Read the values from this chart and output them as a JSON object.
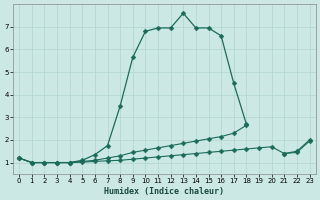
{
  "xlabel": "Humidex (Indice chaleur)",
  "background_color": "#cce8e4",
  "grid_color": "#b0d4cf",
  "line_color": "#1a6b5a",
  "xlim": [
    -0.5,
    23.5
  ],
  "ylim": [
    0.5,
    8.0
  ],
  "xticks": [
    0,
    1,
    2,
    3,
    4,
    5,
    6,
    7,
    8,
    9,
    10,
    11,
    12,
    13,
    14,
    15,
    16,
    17,
    18,
    19,
    20,
    21,
    22,
    23
  ],
  "yticks": [
    1,
    2,
    3,
    4,
    5,
    6,
    7
  ],
  "series": [
    {
      "x": [
        0,
        1,
        2,
        3,
        4,
        5,
        6,
        7,
        8,
        9,
        10,
        11,
        12,
        13,
        14,
        15,
        16,
        17,
        18,
        19,
        20,
        21,
        22,
        23
      ],
      "y": [
        1.2,
        1.0,
        1.0,
        1.0,
        1.0,
        1.1,
        1.35,
        1.75,
        3.5,
        5.65,
        6.8,
        6.95,
        6.95,
        7.6,
        6.95,
        6.95,
        6.6,
        4.5,
        2.7,
        null,
        null,
        null,
        null,
        null
      ]
    },
    {
      "x": [
        0,
        1,
        2,
        3,
        4,
        5,
        6,
        7,
        8,
        9,
        10,
        11,
        12,
        13,
        14,
        15,
        16,
        17,
        18,
        19,
        20,
        21,
        22,
        23
      ],
      "y": [
        1.2,
        1.0,
        1.0,
        1.0,
        1.0,
        1.05,
        1.1,
        1.2,
        1.3,
        1.45,
        1.55,
        1.65,
        1.75,
        1.85,
        1.95,
        2.05,
        2.15,
        2.3,
        2.65,
        null,
        null,
        1.4,
        1.5,
        2.0
      ]
    },
    {
      "x": [
        0,
        1,
        2,
        3,
        4,
        5,
        6,
        7,
        8,
        9,
        10,
        11,
        12,
        13,
        14,
        15,
        16,
        17,
        18,
        19,
        20,
        21,
        22,
        23
      ],
      "y": [
        1.2,
        1.0,
        1.0,
        1.0,
        1.0,
        1.02,
        1.05,
        1.08,
        1.1,
        1.15,
        1.2,
        1.25,
        1.3,
        1.35,
        1.4,
        1.45,
        1.5,
        1.55,
        1.6,
        1.65,
        1.7,
        1.4,
        1.45,
        1.95
      ]
    }
  ]
}
